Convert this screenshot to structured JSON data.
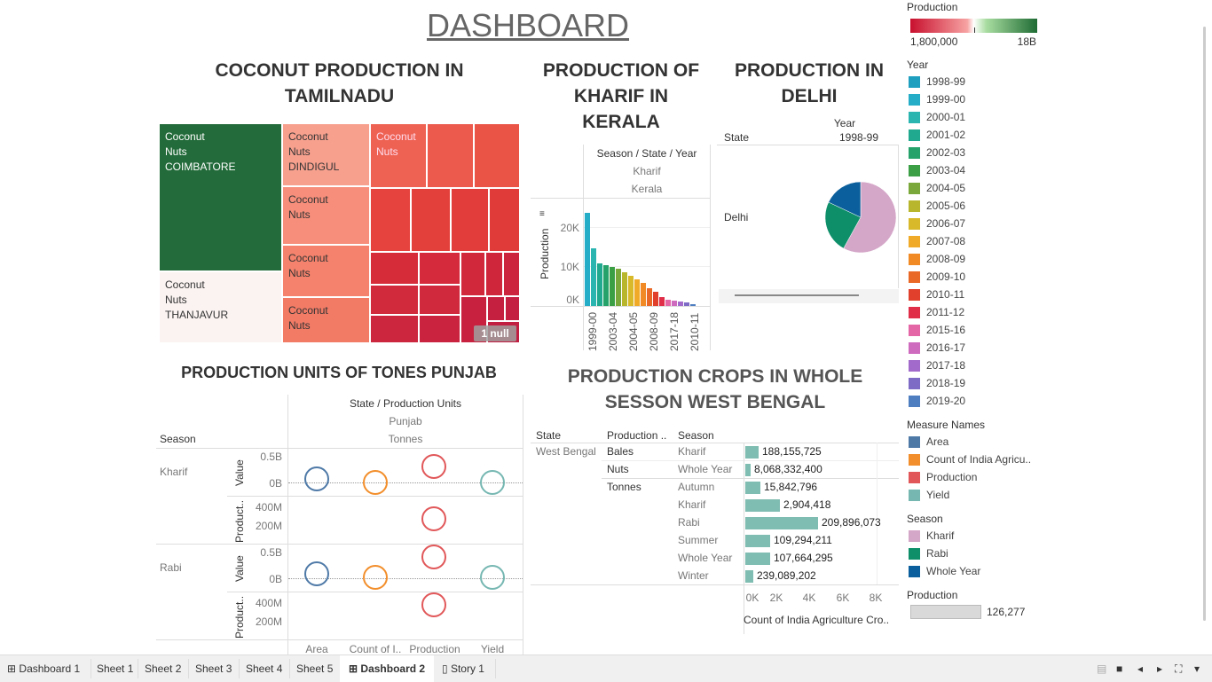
{
  "dashboard_title": "DASHBOARD",
  "treemap": {
    "title_line1": "COCONUT PRODUCTION IN",
    "title_line2": "TAMILNADU",
    "cells": [
      {
        "crop": "Coconut",
        "type": "Nuts",
        "district": "COIMBATORE",
        "color": "#236b3a"
      },
      {
        "crop": "Coconut",
        "type": "Nuts",
        "district": "THANJAVUR",
        "color": "#fbf3f2"
      },
      {
        "crop": "Coconut",
        "type": "Nuts",
        "district": "DINDIGUL",
        "color": "#f7a08e"
      },
      {
        "crop": "Coconut",
        "type": "Nuts",
        "color": "#f68e7b"
      },
      {
        "crop": "Coconut",
        "type": "Nuts",
        "color": "#f4826c"
      },
      {
        "crop": "Coconut",
        "type": "Nuts",
        "color": "#f27b66"
      },
      {
        "crop": "Coconut",
        "type": "Nuts",
        "color": "#ee6253"
      }
    ],
    "null_badge": "1 null"
  },
  "kerala": {
    "title_line1": "PRODUCTION OF",
    "title_line2": "KHARIF IN",
    "title_line3": "KERALA",
    "header": "Season / State / Year",
    "season": "Kharif",
    "state": "Kerala",
    "ylabel": "Production",
    "yticks": [
      "20K",
      "10K",
      "0K"
    ],
    "xticks": [
      "1999-00",
      "2003-04",
      "2004-05",
      "2008-09",
      "2017-18",
      "2010-11"
    ]
  },
  "delhi": {
    "title_line1": "PRODUCTION IN",
    "title_line2": "DELHI",
    "col_header": "Year",
    "year": "1998-99",
    "row_header": "State",
    "state": "Delhi"
  },
  "punjab": {
    "title": "PRODUCTION UNITS OF TONES PUNJAB",
    "header": "State / Production Units",
    "state": "Punjab",
    "units": "Tonnes",
    "season_header": "Season",
    "seasons": [
      "Kharif",
      "Rabi"
    ],
    "value_label": "Value",
    "product_label": "Product..",
    "value_ticks": [
      "0.5B",
      "0B"
    ],
    "product_ticks": [
      "400M",
      "200M"
    ],
    "x_labels": [
      "Area",
      "Count of I..",
      "Production",
      "Yield"
    ]
  },
  "westbengal": {
    "title_line1": "PRODUCTION CROPS IN WHOLE",
    "title_line2": "SESSON WEST BENGAL",
    "col_state": "State",
    "col_production": "Production ..",
    "col_season": "Season",
    "state": "West Bengal",
    "xticks": [
      "0K",
      "2K",
      "4K",
      "6K",
      "8K"
    ],
    "xlabel": "Count of India Agriculture Cro..",
    "rows": [
      {
        "unit": "Bales",
        "season": "Kharif",
        "label": "188,155,725"
      },
      {
        "unit": "Nuts",
        "season": "Whole Year",
        "label": "8,068,332,400"
      },
      {
        "unit": "Tonnes",
        "season": "Autumn",
        "label": "15,842,796"
      },
      {
        "unit": "",
        "season": "Kharif",
        "label": "2,904,418"
      },
      {
        "unit": "",
        "season": "Rabi",
        "label": "209,896,073"
      },
      {
        "unit": "",
        "season": "Summer",
        "label": "109,294,211"
      },
      {
        "unit": "",
        "season": "Whole Year",
        "label": "107,664,295"
      },
      {
        "unit": "",
        "season": "Winter",
        "label": "239,089,202"
      }
    ]
  },
  "legends": {
    "production_title": "Production",
    "production_min": "1,800,000",
    "production_max": "18B",
    "year_title": "Year",
    "years": [
      {
        "label": "1998-99",
        "color": "#1f9fc0"
      },
      {
        "label": "1999-00",
        "color": "#25adc7"
      },
      {
        "label": "2000-01",
        "color": "#2bb5b0"
      },
      {
        "label": "2001-02",
        "color": "#20a98e"
      },
      {
        "label": "2002-03",
        "color": "#24a26a"
      },
      {
        "label": "2003-04",
        "color": "#3a9f45"
      },
      {
        "label": "2004-05",
        "color": "#7aa83a"
      },
      {
        "label": "2005-06",
        "color": "#b8b62c"
      },
      {
        "label": "2006-07",
        "color": "#d8b92a"
      },
      {
        "label": "2007-08",
        "color": "#f0aa27"
      },
      {
        "label": "2008-09",
        "color": "#f18a24"
      },
      {
        "label": "2009-10",
        "color": "#ea6826"
      },
      {
        "label": "2010-11",
        "color": "#e0402c"
      },
      {
        "label": "2011-12",
        "color": "#e02d48"
      },
      {
        "label": "2015-16",
        "color": "#e466a7"
      },
      {
        "label": "2016-17",
        "color": "#cf6bbf"
      },
      {
        "label": "2017-18",
        "color": "#a26bcb"
      },
      {
        "label": "2018-19",
        "color": "#7d6bc6"
      },
      {
        "label": "2019-20",
        "color": "#4f7ec0"
      }
    ],
    "measure_title": "Measure Names",
    "measures": [
      {
        "label": "Area",
        "color": "#4e79a7"
      },
      {
        "label": "Count of India Agricu..",
        "color": "#f28e2b"
      },
      {
        "label": "Production",
        "color": "#e15759"
      },
      {
        "label": "Yield",
        "color": "#76b7b2"
      }
    ],
    "season_title": "Season",
    "seasons": [
      {
        "label": "Kharif",
        "color": "#d4a6c8"
      },
      {
        "label": "Rabi",
        "color": "#0e8f6a"
      },
      {
        "label": "Whole Year",
        "color": "#0a5f9c"
      }
    ],
    "production2_title": "Production",
    "production2_value": "126,277"
  },
  "tabs": [
    {
      "label": "Dashboard 1",
      "icon": "grid-icon"
    },
    {
      "label": "Sheet 1"
    },
    {
      "label": "Sheet 2"
    },
    {
      "label": "Sheet 3"
    },
    {
      "label": "Sheet 4"
    },
    {
      "label": "Sheet 5"
    },
    {
      "label": "Dashboard 2",
      "icon": "grid-icon",
      "active": true
    },
    {
      "label": "Story 1",
      "icon": "book-icon"
    }
  ],
  "chart_data": [
    {
      "type": "bar",
      "ylabel": "Production",
      "ylim": [
        0,
        30000
      ],
      "values": [
        26000,
        16000,
        12000,
        11500,
        11000,
        10500,
        9500,
        8500,
        7500,
        6500,
        5000,
        4000,
        2500,
        1800,
        1500,
        1200,
        900,
        400
      ]
    },
    {
      "type": "pie",
      "slices": [
        {
          "name": "Kharif",
          "value": 58
        },
        {
          "name": "Rabi",
          "value": 24
        },
        {
          "name": "Whole Year",
          "value": 18
        }
      ]
    },
    {
      "type": "bar",
      "xlabel": "Count of India Agriculture Cro..",
      "xlim": [
        0,
        9000
      ],
      "categories": [
        "Kharif",
        "Whole Year",
        "Autumn",
        "Kharif",
        "Rabi",
        "Summer",
        "Whole Year",
        "Winter"
      ],
      "values": [
        800,
        300,
        900,
        2100,
        4400,
        1500,
        1500,
        500
      ],
      "labels": [
        "188,155,725",
        "8,068,332,400",
        "15,842,796",
        "2,904,418",
        "209,896,073",
        "109,294,211",
        "107,664,295",
        "239,089,202"
      ]
    }
  ]
}
